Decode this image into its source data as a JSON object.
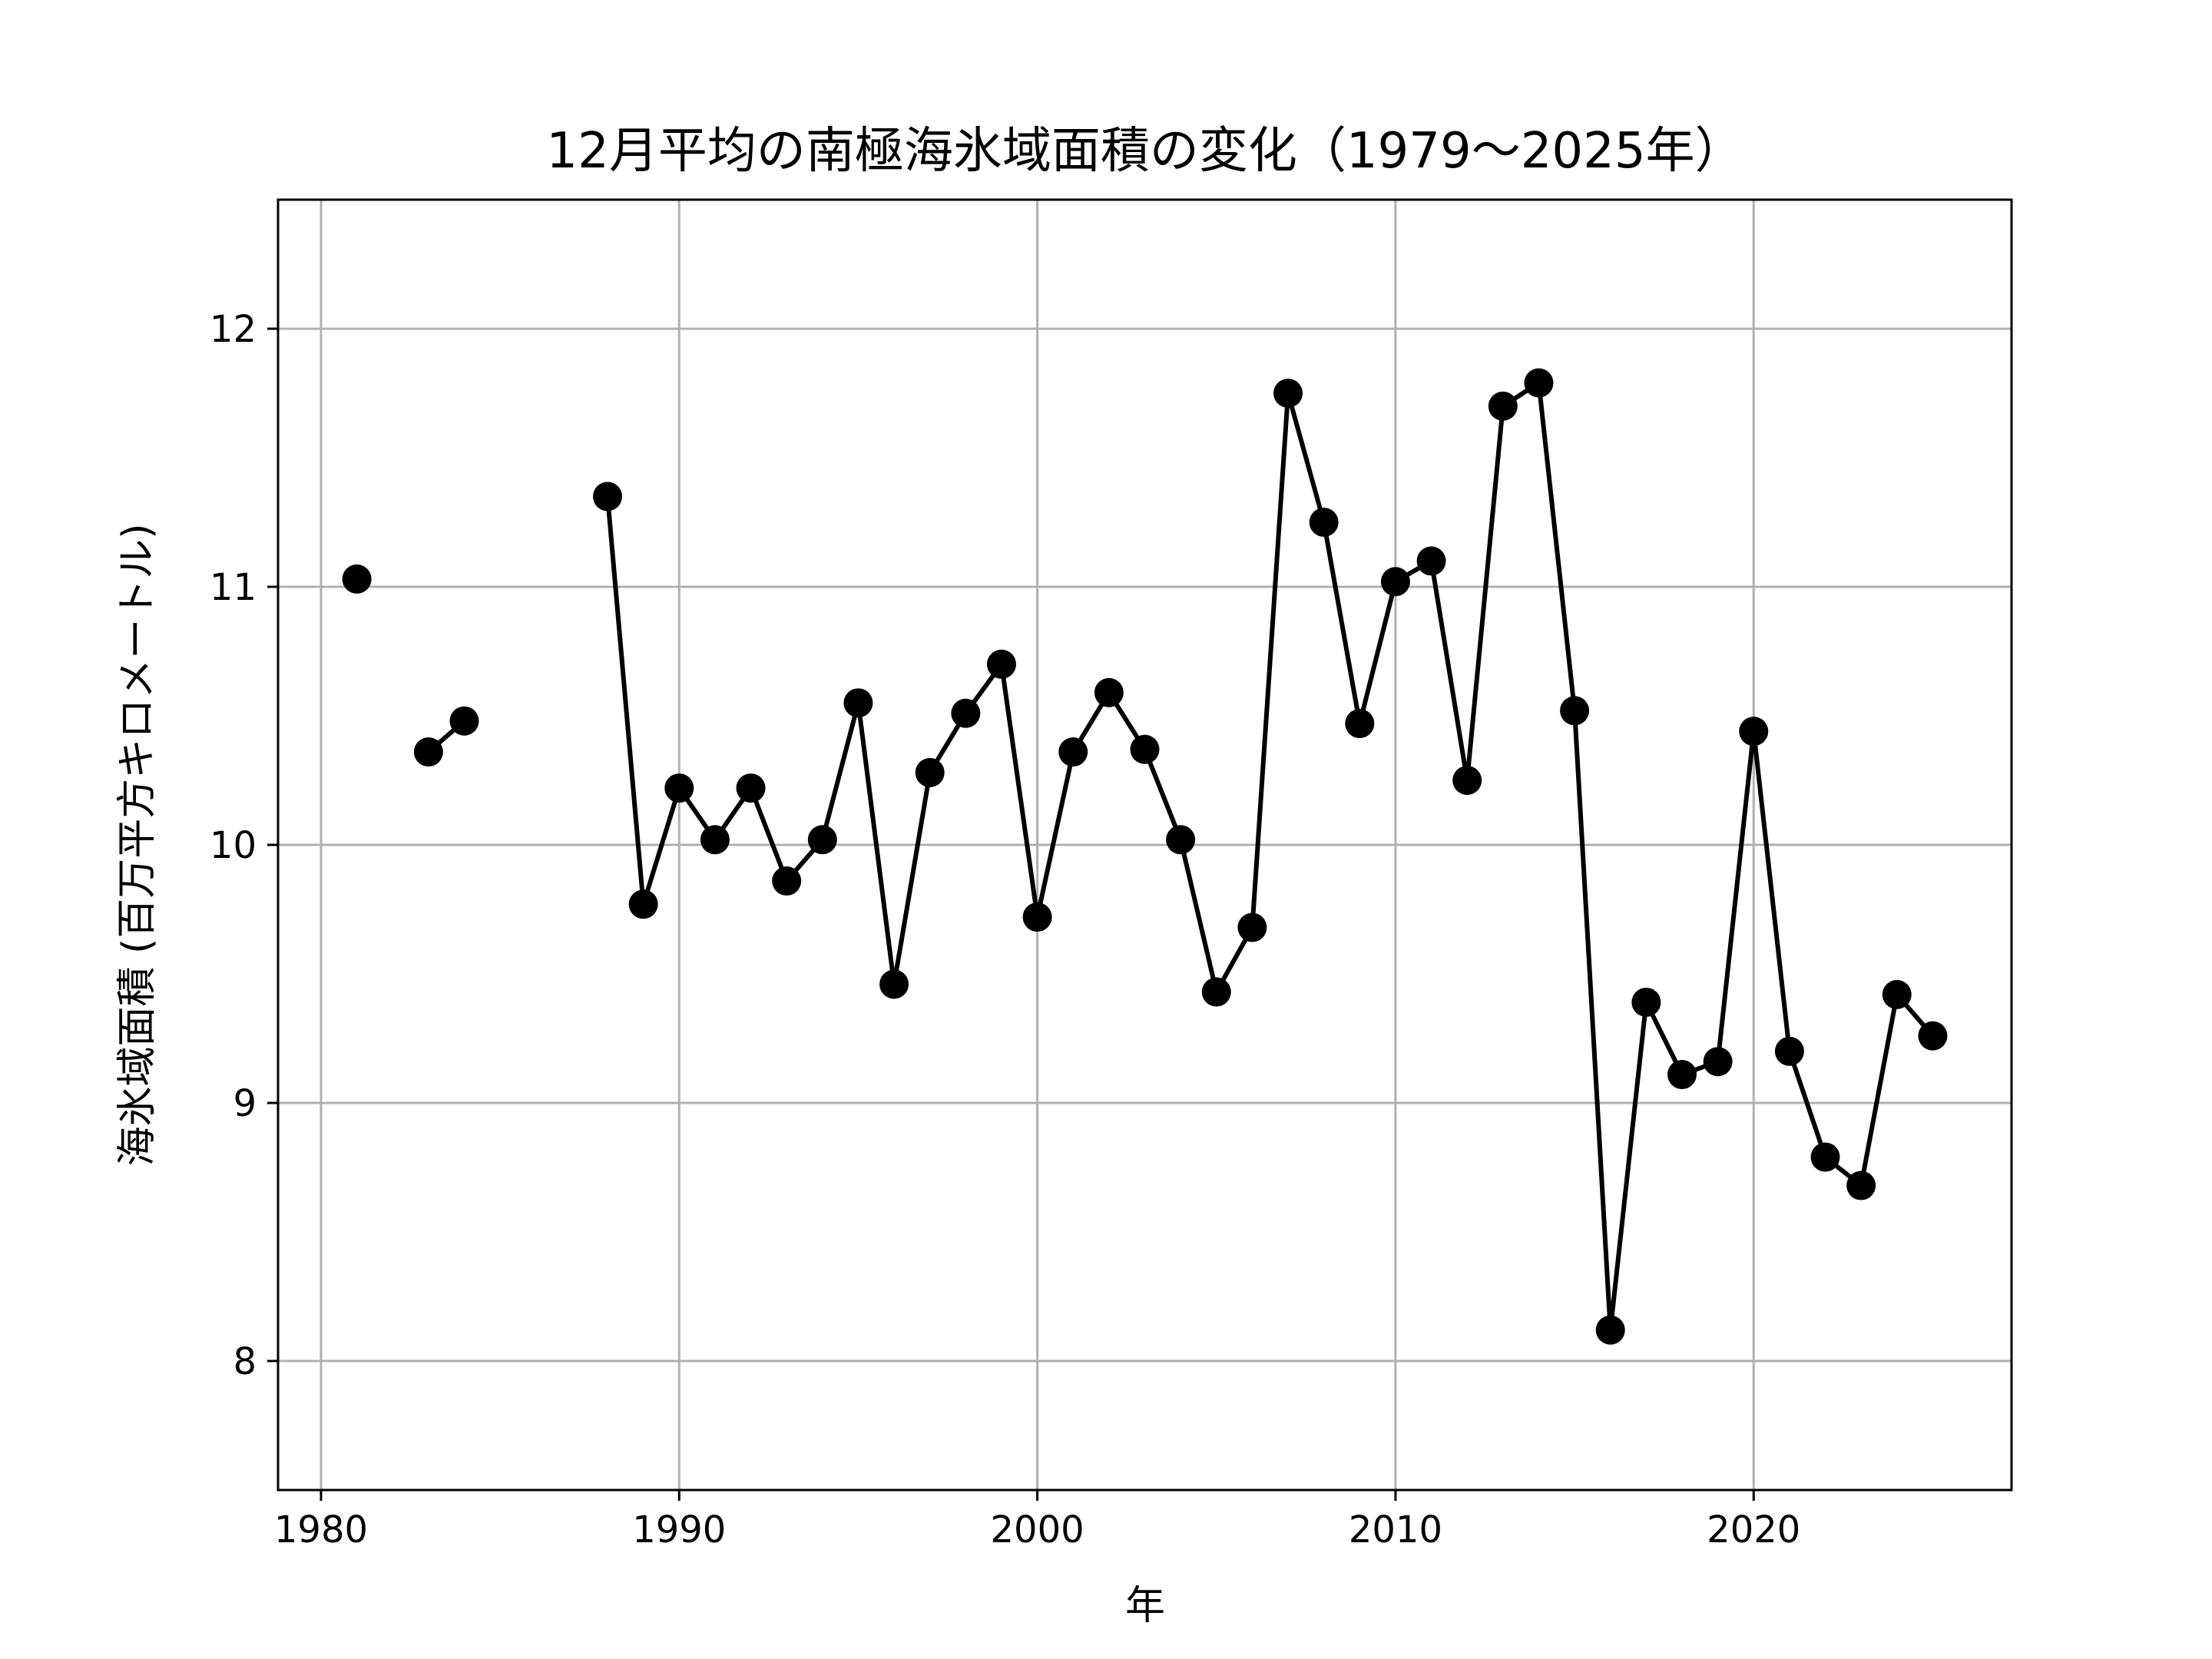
{
  "chart_data": {
    "type": "line",
    "title": "12月平均の南極海氷域面積の変化（1979〜2025年）",
    "xlabel": "年",
    "ylabel": "海氷域面積 (百万平方キロメートル)",
    "xlim": [
      1978.8,
      2027.2
    ],
    "ylim": [
      7.5,
      12.5
    ],
    "xticks": [
      1980,
      1990,
      2000,
      2010,
      2020
    ],
    "xtick_labels": [
      "1980",
      "1990",
      "2000",
      "2010",
      "2020"
    ],
    "yticks": [
      8,
      9,
      10,
      11,
      12
    ],
    "ytick_labels": [
      "8",
      "9",
      "10",
      "11",
      "12"
    ],
    "grid": true,
    "legend": false,
    "line_color": "#000000",
    "grid_color": "#b0b0b0",
    "series": [
      {
        "x": [
          1979,
          1980,
          1981,
          1982,
          1983,
          1984,
          1985,
          1986,
          1987,
          1988,
          1989,
          1990,
          1991,
          1992,
          1993,
          1994,
          1995,
          1996,
          1997,
          1998,
          1999,
          2000,
          2001,
          2002,
          2003,
          2004,
          2005,
          2006,
          2007,
          2008,
          2009,
          2010,
          2011,
          2012,
          2013,
          2014,
          2015,
          2016,
          2017,
          2018,
          2019,
          2020,
          2021,
          2022,
          2023,
          2024,
          2025
        ],
        "values": [
          null,
          null,
          11.03,
          null,
          10.36,
          10.48,
          null,
          null,
          null,
          11.35,
          9.77,
          10.22,
          10.02,
          10.22,
          9.86,
          10.02,
          10.55,
          9.46,
          10.28,
          10.51,
          10.7,
          9.72,
          10.36,
          10.59,
          10.37,
          10.02,
          9.43,
          9.68,
          11.75,
          11.25,
          10.47,
          11.02,
          11.1,
          10.25,
          11.7,
          11.79,
          10.52,
          8.12,
          9.39,
          9.11,
          9.16,
          10.44,
          9.2,
          8.79,
          8.68,
          9.42,
          9.26
        ]
      }
    ]
  }
}
